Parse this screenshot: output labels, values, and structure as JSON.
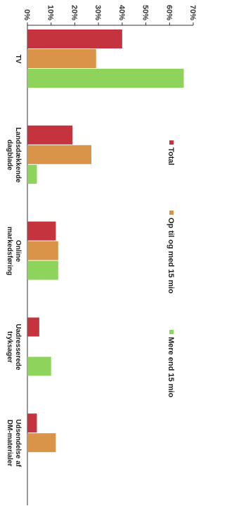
{
  "chart_data": {
    "type": "bar",
    "orientation": "horizontal",
    "rotated_view": "90deg-clockwise",
    "categories": [
      "TV",
      "Landsdækkende dagblade",
      "Online markedsføring",
      "Uadresserede tryksager",
      "Udsendelse af DM-materialer"
    ],
    "series": [
      {
        "name": "Total",
        "color": "#c4333e",
        "values": [
          40,
          19,
          12,
          5,
          4
        ]
      },
      {
        "name": "Op til og med 15 mio",
        "color": "#d9944a",
        "values": [
          29,
          27,
          13,
          0,
          12
        ]
      },
      {
        "name": "Mere end 15 mio",
        "color": "#8ed35c",
        "values": [
          66,
          4,
          13,
          10,
          0
        ]
      }
    ],
    "axis_ticks": [
      "0%",
      "10%",
      "20%",
      "30%",
      "40%",
      "50%",
      "60%",
      "70%"
    ],
    "xlim": [
      0,
      70
    ],
    "grid": false,
    "legend_position": "right"
  }
}
